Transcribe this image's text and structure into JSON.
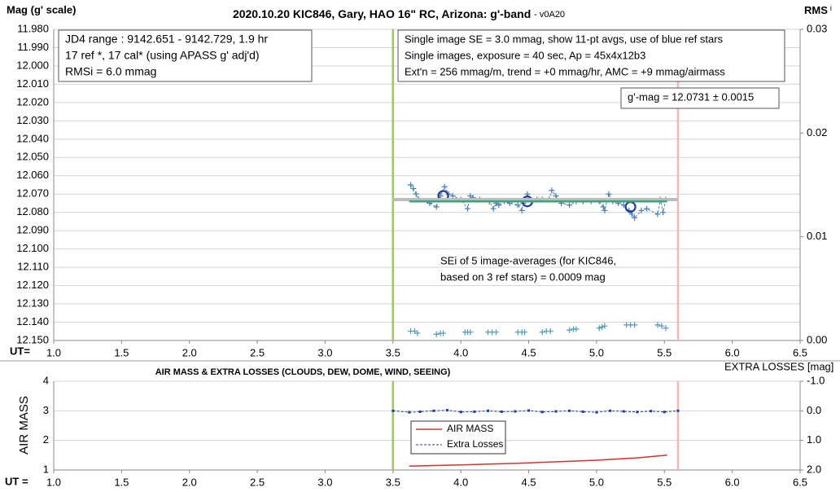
{
  "chart_data": [
    {
      "type": "scatter",
      "title": "2020.10.20 KIC846, Gary, HAO 16\" RC, Arizona: g'-band",
      "subtitle": "- v0A20",
      "y_label": "Mag (g' scale)",
      "y2_label": "RMS",
      "y2_label_sub": "i",
      "x_label": "UT=",
      "xlim": [
        1.0,
        6.5
      ],
      "xticks": [
        {
          "value": 1.0,
          "label": "1.0"
        },
        1.5,
        {
          "value": 2.0,
          "label": "2.0"
        },
        2.5,
        {
          "value": 3.0,
          "label": "3.0"
        },
        3.5,
        {
          "value": 4.0,
          "label": "4.0"
        },
        4.5,
        {
          "value": 5.0,
          "label": "5.0"
        },
        5.5,
        {
          "value": 6.0,
          "label": "6.0"
        },
        6.5
      ],
      "ylim": [
        11.98,
        12.15
      ],
      "y_reversed": true,
      "yticks": [
        {
          "value": 11.98,
          "label": "11.980"
        },
        {
          "value": 11.99,
          "label": "11.990"
        },
        {
          "value": 12.0,
          "label": "12.000"
        },
        {
          "value": 12.01,
          "label": "12.010"
        },
        {
          "value": 12.02,
          "label": "12.020"
        },
        {
          "value": 12.03,
          "label": "12.030"
        },
        {
          "value": 12.04,
          "label": "12.040"
        },
        {
          "value": 12.05,
          "label": "12.050"
        },
        {
          "value": 12.06,
          "label": "12.060"
        },
        {
          "value": 12.07,
          "label": "12.070"
        },
        {
          "value": 12.08,
          "label": "12.080"
        },
        {
          "value": 12.09,
          "label": "12.090"
        },
        {
          "value": 12.1,
          "label": "12.100"
        },
        {
          "value": 12.11,
          "label": "12.110"
        },
        {
          "value": 12.12,
          "label": "12.120"
        },
        {
          "value": 12.13,
          "label": "12.130"
        },
        {
          "value": 12.14,
          "label": "12.140"
        },
        {
          "value": 12.15,
          "label": "12.150"
        }
      ],
      "y2lim": [
        0,
        0.03
      ],
      "y2ticks": [
        {
          "value": 0,
          "label": "0.00"
        },
        0.01,
        0.02,
        0.03
      ],
      "grid": true,
      "vlines": [
        {
          "x": 3.5,
          "color": "#92d050"
        },
        {
          "x": 5.6,
          "color": "#f4b8b8"
        }
      ],
      "series": [
        {
          "style": "markers-dashed",
          "color": "#4a7fb5",
          "x": [
            3.63,
            3.65,
            3.67,
            3.69,
            3.77,
            3.82,
            3.85,
            3.88,
            3.91,
            3.94,
            4.0,
            4.05,
            4.07,
            4.09,
            4.14,
            4.21,
            4.24,
            4.26,
            4.28,
            4.32,
            4.36,
            4.42,
            4.45,
            4.46,
            4.49,
            4.51,
            4.56,
            4.6,
            4.65,
            4.67,
            4.7,
            4.74,
            4.8,
            4.85,
            4.9,
            4.96,
            5.02,
            5.05,
            5.06,
            5.09,
            5.12,
            5.16,
            5.2,
            5.24,
            5.26,
            5.28,
            5.33,
            5.37,
            5.45,
            5.47,
            5.49,
            5.51
          ],
          "values": [
            12.065,
            12.067,
            12.07,
            12.073,
            12.075,
            12.077,
            12.071,
            12.066,
            12.07,
            12.071,
            12.073,
            12.078,
            12.071,
            12.072,
            12.073,
            12.074,
            12.078,
            12.075,
            12.076,
            12.074,
            12.075,
            12.076,
            12.079,
            12.075,
            12.07,
            12.073,
            12.073,
            12.073,
            12.073,
            12.068,
            12.071,
            12.075,
            12.076,
            12.074,
            12.074,
            12.074,
            12.074,
            12.077,
            12.079,
            12.07,
            12.074,
            12.075,
            12.076,
            12.079,
            12.081,
            12.083,
            12.079,
            12.078,
            12.081,
            12.073,
            12.08,
            12.073
          ]
        },
        {
          "style": "circles",
          "color": "#1f3f9f",
          "x": [
            3.87,
            4.49,
            5.25
          ],
          "values": [
            12.071,
            12.074,
            12.077
          ]
        },
        {
          "style": "line",
          "color": "#bdbdbd",
          "width": 4,
          "x": [
            3.5,
            5.6
          ],
          "values": [
            12.073,
            12.073
          ]
        },
        {
          "style": "line",
          "color": "#3aa57a",
          "width": 2.5,
          "x": [
            3.62,
            5.52
          ],
          "values": [
            12.074,
            12.074
          ]
        },
        {
          "style": "markers",
          "color": "#4f9bb8",
          "axis": "y2",
          "x": [
            3.63,
            3.66,
            3.68,
            3.82,
            3.85,
            3.87,
            4.03,
            4.05,
            4.07,
            4.2,
            4.23,
            4.26,
            4.42,
            4.45,
            4.47,
            4.6,
            4.63,
            4.66,
            4.8,
            4.83,
            4.85,
            5.02,
            5.04,
            5.06,
            5.22,
            5.25,
            5.28,
            5.45,
            5.48,
            5.51
          ],
          "values": [
            0.0009,
            0.0009,
            0.0007,
            0.0006,
            0.0007,
            0.0007,
            0.0008,
            0.0008,
            0.0008,
            0.0008,
            0.0008,
            0.0008,
            0.0008,
            0.0008,
            0.0008,
            0.0008,
            0.0009,
            0.0009,
            0.001,
            0.0011,
            0.0011,
            0.0012,
            0.0013,
            0.0014,
            0.0015,
            0.0015,
            0.0015,
            0.0015,
            0.0014,
            0.0012
          ]
        }
      ],
      "annotations": [
        {
          "lines": [
            "JD4 range : 9142.651 - 9142.729,  1.9  hr",
            "17 ref *, 17 cal* (using APASS g' adj'd)",
            "RMSi = 6.0 mmag"
          ]
        },
        {
          "lines": [
            "Single image SE = 3.0 mmag, show  11-pt avgs, use of blue ref stars",
            "Single images, exposure = 40 sec, Ap = 45x4x12b3",
            "Ext'n = 256 mmag/m, trend =  +0 mmag/hr, AMC = +9 mmag/airmass"
          ]
        },
        {
          "lines": [
            "g'-mag = 12.0731 ± 0.0015"
          ]
        },
        {
          "lines": [
            "SEi of 5 image-averages (for KIC846,",
            "based on 3 ref stars) = 0.0009 mag"
          ]
        }
      ]
    },
    {
      "type": "line",
      "title": "AIR MASS & EXTRA LOSSES (CLOUDS, DEW, DOME, WIND, SEEING)",
      "y_label": "AIR MASS",
      "y2_label": "EXTRA LOSSES [mag]",
      "x_label": "UT =",
      "xlim": [
        1.0,
        6.5
      ],
      "xticks": [
        {
          "value": 1.0,
          "label": "1.0"
        },
        1.5,
        {
          "value": 2.0,
          "label": "2.0"
        },
        2.5,
        {
          "value": 3.0,
          "label": "3.0"
        },
        3.5,
        {
          "value": 4.0,
          "label": "4.0"
        },
        4.5,
        {
          "value": 5.0,
          "label": "5.0"
        },
        5.5,
        {
          "value": 6.0,
          "label": "6.0"
        },
        6.5
      ],
      "ylim": [
        1,
        4
      ],
      "yticks": [
        1,
        2,
        3,
        4
      ],
      "y2lim": [
        2.0,
        -1.0
      ],
      "y2ticks": [
        {
          "value": 2.0,
          "label": "2.0"
        },
        {
          "value": 1.0,
          "label": "1.0"
        },
        {
          "value": 0.0,
          "label": "0.0"
        },
        {
          "value": -1.0,
          "label": "-1.0"
        }
      ],
      "grid": true,
      "legend": "inside",
      "vlines": [
        {
          "x": 3.5,
          "color": "#92d050"
        },
        {
          "x": 5.6,
          "color": "#f4b8b8"
        }
      ],
      "series": [
        {
          "name": "AIR MASS",
          "style": "line",
          "color": "#d9302c",
          "width": 1.5,
          "x": [
            3.62,
            4.0,
            4.5,
            5.0,
            5.3,
            5.52
          ],
          "values": [
            1.13,
            1.17,
            1.24,
            1.33,
            1.41,
            1.5
          ]
        },
        {
          "name": "Extra Losses",
          "style": "dots-dashed",
          "color": "#1f3f9f",
          "axis": "y2",
          "x": [
            3.5,
            3.62,
            3.7,
            3.8,
            3.9,
            4.0,
            4.1,
            4.2,
            4.3,
            4.4,
            4.5,
            4.6,
            4.7,
            4.8,
            4.9,
            5.0,
            5.1,
            5.2,
            5.3,
            5.4,
            5.5,
            5.6
          ],
          "values": [
            0.0,
            0.05,
            0.03,
            0.0,
            -0.02,
            0.04,
            0.03,
            0.0,
            0.03,
            0.02,
            -0.01,
            0.04,
            0.02,
            0.0,
            0.03,
            0.05,
            0.0,
            0.02,
            0.04,
            0.01,
            0.04,
            0.0
          ]
        }
      ]
    }
  ]
}
